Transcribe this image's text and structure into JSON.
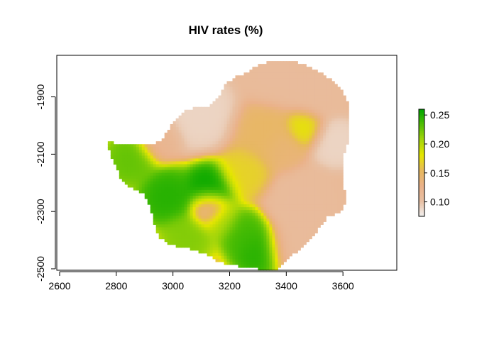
{
  "chart_data": {
    "type": "heatmap",
    "title": "HIV rates (%)",
    "xlabel": "",
    "ylabel": "",
    "x_ticks": [
      2600,
      2800,
      3000,
      3200,
      3400,
      3600
    ],
    "y_ticks": [
      -1900,
      -2100,
      -2300,
      -2500
    ],
    "x_tick_labels": [
      "2600",
      "2800",
      "3000",
      "3200",
      "3400",
      "3600"
    ],
    "y_tick_labels": [
      "-1900",
      "-2100",
      "-2300",
      "-2500"
    ],
    "xlim": [
      2590,
      3790
    ],
    "ylim": [
      -2505,
      -1755
    ],
    "legend": {
      "position": "right",
      "min": 0.075,
      "max": 0.26,
      "ticks": [
        0.1,
        0.15,
        0.2,
        0.25
      ],
      "tick_labels": [
        "0.10",
        "0.15",
        "0.20",
        "0.25"
      ],
      "colors": [
        "#f2f2f2",
        "#eab28a",
        "#e6e600",
        "#00a600"
      ]
    },
    "colormap": [
      "#f2f2f2",
      "#e8c0a3",
      "#eab28a",
      "#e7b85e",
      "#e6e600",
      "#a6d60a",
      "#53bf05",
      "#00a600"
    ],
    "region_outline": [
      [
        2768,
        -2050
      ],
      [
        2800,
        -2065
      ],
      [
        2850,
        -2070
      ],
      [
        2925,
        -2068
      ],
      [
        2960,
        -2050
      ],
      [
        3000,
        -1990
      ],
      [
        3045,
        -1950
      ],
      [
        3090,
        -1935
      ],
      [
        3135,
        -1930
      ],
      [
        3160,
        -1905
      ],
      [
        3185,
        -1855
      ],
      [
        3225,
        -1830
      ],
      [
        3260,
        -1815
      ],
      [
        3300,
        -1790
      ],
      [
        3340,
        -1775
      ],
      [
        3380,
        -1770
      ],
      [
        3430,
        -1775
      ],
      [
        3475,
        -1790
      ],
      [
        3520,
        -1815
      ],
      [
        3560,
        -1840
      ],
      [
        3595,
        -1870
      ],
      [
        3620,
        -1920
      ],
      [
        3620,
        -2050
      ],
      [
        3600,
        -2110
      ],
      [
        3600,
        -2200
      ],
      [
        3615,
        -2260
      ],
      [
        3590,
        -2300
      ],
      [
        3545,
        -2320
      ],
      [
        3515,
        -2360
      ],
      [
        3480,
        -2400
      ],
      [
        3450,
        -2430
      ],
      [
        3400,
        -2470
      ],
      [
        3370,
        -2500
      ],
      [
        3300,
        -2500
      ],
      [
        3230,
        -2490
      ],
      [
        3160,
        -2475
      ],
      [
        3120,
        -2450
      ],
      [
        3060,
        -2430
      ],
      [
        2990,
        -2415
      ],
      [
        2950,
        -2390
      ],
      [
        2935,
        -2340
      ],
      [
        2920,
        -2290
      ],
      [
        2900,
        -2240
      ],
      [
        2860,
        -2220
      ],
      [
        2820,
        -2195
      ],
      [
        2800,
        -2145
      ],
      [
        2785,
        -2110
      ],
      [
        2770,
        -2075
      ]
    ],
    "field_centers": [
      {
        "x": 2850,
        "y": -2120,
        "value": 0.23,
        "spread": 60
      },
      {
        "x": 2980,
        "y": -2250,
        "value": 0.25,
        "spread": 65
      },
      {
        "x": 3130,
        "y": -2220,
        "value": 0.26,
        "spread": 60
      },
      {
        "x": 3250,
        "y": -2380,
        "value": 0.24,
        "spread": 55
      },
      {
        "x": 3300,
        "y": -2440,
        "value": 0.25,
        "spread": 60
      },
      {
        "x": 3050,
        "y": -2390,
        "value": 0.22,
        "spread": 60
      },
      {
        "x": 3170,
        "y": -2330,
        "value": 0.21,
        "spread": 45
      },
      {
        "x": 3250,
        "y": -2160,
        "value": 0.17,
        "spread": 60
      },
      {
        "x": 3320,
        "y": -2030,
        "value": 0.15,
        "spread": 70
      },
      {
        "x": 3460,
        "y": -2010,
        "value": 0.18,
        "spread": 45
      },
      {
        "x": 3390,
        "y": -2080,
        "value": 0.14,
        "spread": 50
      },
      {
        "x": 3100,
        "y": -1960,
        "value": 0.09,
        "spread": 80
      },
      {
        "x": 3130,
        "y": -2290,
        "value": 0.11,
        "spread": 45
      },
      {
        "x": 3360,
        "y": -1830,
        "value": 0.11,
        "spread": 70
      },
      {
        "x": 3500,
        "y": -1880,
        "value": 0.11,
        "spread": 65
      },
      {
        "x": 3570,
        "y": -2060,
        "value": 0.09,
        "spread": 55
      },
      {
        "x": 3460,
        "y": -2280,
        "value": 0.11,
        "spread": 80
      },
      {
        "x": 3420,
        "y": -2420,
        "value": 0.11,
        "spread": 60
      },
      {
        "x": 2950,
        "y": -2050,
        "value": 0.12,
        "spread": 50
      }
    ],
    "field_base": 0.12
  }
}
